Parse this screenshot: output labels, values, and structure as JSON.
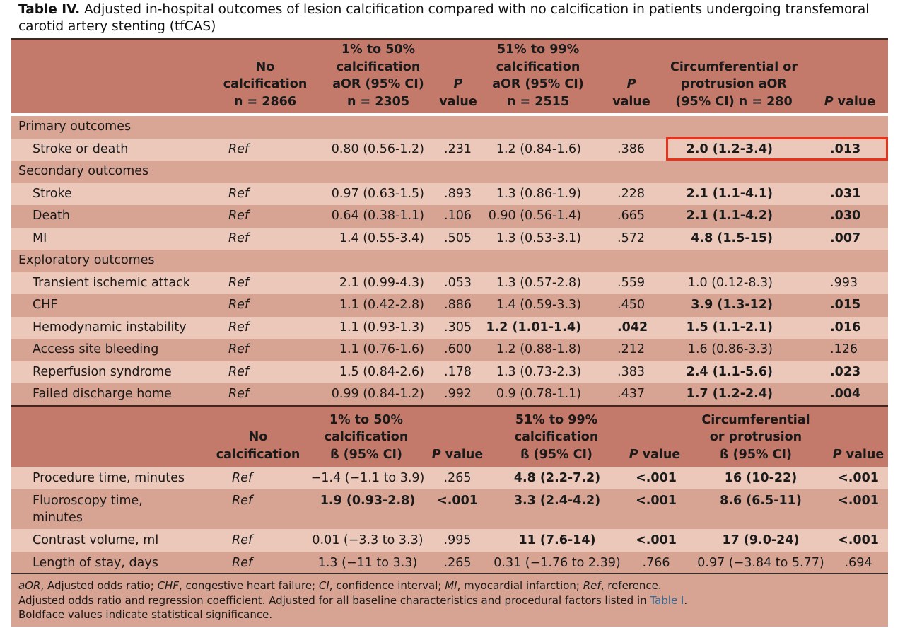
{
  "caption": {
    "label": "Table IV.",
    "text": "Adjusted in-hospital outcomes of lesion calcification compared with no calcification in patients undergoing transfemoral carotid artery stenting (tfCAS)"
  },
  "header1": {
    "col1": [
      "No",
      "calcification",
      "n = 2866"
    ],
    "col2": [
      "1% to 50%",
      "calcification",
      "aOR (95% CI)",
      "n = 2305"
    ],
    "col3": [
      "P",
      "value"
    ],
    "col4": [
      "51% to 99%",
      "calcification",
      "aOR (95% CI)",
      "n = 2515"
    ],
    "col5": [
      "P",
      "value"
    ],
    "col6": [
      "Circumferential or",
      "protrusion aOR",
      "(95% CI) n = 280"
    ],
    "col7": "P value"
  },
  "sections": [
    {
      "title": "Primary outcomes",
      "rows": [
        {
          "label": "Stroke or death",
          "ref": "Ref",
          "a": "0.80 (0.56-1.2)",
          "pa": ".231",
          "b": "1.2 (0.84-1.6)",
          "pb": ".386",
          "c": "2.0 (1.2-3.4)",
          "pc": ".013"
        }
      ]
    },
    {
      "title": "Secondary outcomes",
      "rows": [
        {
          "label": "Stroke",
          "ref": "Ref",
          "a": "0.97 (0.63-1.5)",
          "pa": ".893",
          "b": "1.3 (0.86-1.9)",
          "pb": ".228",
          "c": "2.1 (1.1-4.1)",
          "pc": ".031"
        },
        {
          "label": "Death",
          "ref": "Ref",
          "a": "0.64 (0.38-1.1)",
          "pa": ".106",
          "b": "0.90 (0.56-1.4)",
          "pb": ".665",
          "c": "2.1 (1.1-4.2)",
          "pc": ".030"
        },
        {
          "label": "MI",
          "ref": "Ref",
          "a": "1.4 (0.55-3.4)",
          "pa": ".505",
          "b": "1.3 (0.53-3.1)",
          "pb": ".572",
          "c": "4.8 (1.5-15)",
          "pc": ".007"
        }
      ]
    },
    {
      "title": "Exploratory outcomes",
      "rows": [
        {
          "label": "Transient ischemic attack",
          "ref": "Ref",
          "a": "2.1 (0.99-4.3)",
          "pa": ".053",
          "b": "1.3 (0.57-2.8)",
          "pb": ".559",
          "c": "1.0 (0.12-8.3)",
          "pc": ".993"
        },
        {
          "label": "CHF",
          "ref": "Ref",
          "a": "1.1 (0.42-2.8)",
          "pa": ".886",
          "b": "1.4 (0.59-3.3)",
          "pb": ".450",
          "c": "3.9 (1.3-12)",
          "pc": ".015"
        },
        {
          "label": "Hemodynamic instability",
          "ref": "Ref",
          "a": "1.1 (0.93-1.3)",
          "pa": ".305",
          "b": "1.2 (1.01-1.4)",
          "pb": ".042",
          "c": "1.5 (1.1-2.1)",
          "pc": ".016"
        },
        {
          "label": "Access site bleeding",
          "ref": "Ref",
          "a": "1.1 (0.76-1.6)",
          "pa": ".600",
          "b": "1.2 (0.88-1.8)",
          "pb": ".212",
          "c": "1.6 (0.86-3.3)",
          "pc": ".126"
        },
        {
          "label": "Reperfusion syndrome",
          "ref": "Ref",
          "a": "1.5 (0.84-2.6)",
          "pa": ".178",
          "b": "1.3 (0.73-2.3)",
          "pb": ".383",
          "c": "2.4 (1.1-5.6)",
          "pc": ".023"
        },
        {
          "label": "Failed discharge home",
          "ref": "Ref",
          "a": "0.99 (0.84-1.2)",
          "pa": ".992",
          "b": "0.9 (0.78-1.1)",
          "pb": ".437",
          "c": "1.7 (1.2-2.4)",
          "pc": ".004"
        }
      ]
    }
  ],
  "header2": {
    "col1": [
      "No",
      "calcification"
    ],
    "col2": [
      "1% to 50%",
      "calcification",
      "ß (95% CI)"
    ],
    "col3": "P value",
    "col4": [
      "51% to 99%",
      "calcification",
      "ß (95% CI)"
    ],
    "col5": "P value",
    "col6": [
      "Circumferential",
      "or protrusion",
      "ß (95% CI)"
    ],
    "col7": "P value"
  },
  "continuous": [
    {
      "label": "Procedure time, minutes",
      "ref": "Ref",
      "a": "−1.4 (−1.1 to 3.9)",
      "pa": ".265",
      "b": "4.8 (2.2-7.2)",
      "pb": "<.001",
      "c": "16 (10-22)",
      "pc": "<.001"
    },
    {
      "label": "Fluoroscopy time,",
      "label2": "minutes",
      "ref": "Ref",
      "a": "1.9 (0.93-2.8)",
      "pa": "<.001",
      "b": "3.3 (2.4-4.2)",
      "pb": "<.001",
      "c": "8.6 (6.5-11)",
      "pc": "<.001"
    },
    {
      "label": "Contrast volume, ml",
      "ref": "Ref",
      "a": "0.01 (−3.3 to 3.3)",
      "pa": ".995",
      "b": "11 (7.6-14)",
      "pb": "<.001",
      "c": "17 (9.0-24)",
      "pc": "<.001"
    },
    {
      "label": "Length of stay, days",
      "ref": "Ref",
      "a": "1.3 (−11 to 3.3)",
      "pa": ".265",
      "b": "0.31 (−1.76 to 2.39)",
      "pb": ".766",
      "c": "0.97 (−3.84 to 5.77)",
      "pc": ".694"
    }
  ],
  "footnote": {
    "line1": [
      {
        "t": "aOR",
        "i": true
      },
      {
        "t": ", Adjusted odds ratio; "
      },
      {
        "t": "CHF",
        "i": true
      },
      {
        "t": ", congestive heart failure; "
      },
      {
        "t": "CI",
        "i": true
      },
      {
        "t": ", confidence interval; "
      },
      {
        "t": "MI",
        "i": true
      },
      {
        "t": ", myocardial infarction; "
      },
      {
        "t": "Ref",
        "i": true
      },
      {
        "t": ", reference."
      }
    ],
    "line2_text": "Adjusted odds ratio and regression coefficient. Adjusted for all baseline characteristics and procedural factors listed in ",
    "line2_link": "Table I",
    "line2_end": ".",
    "line3": "Boldface values indicate statistical significance."
  },
  "colors": {
    "header": "#c47a6b",
    "row_light": "#ecc8ba",
    "row_dark": "#d7a392",
    "highlight": "#e8321c",
    "link": "#2f6a9a"
  }
}
